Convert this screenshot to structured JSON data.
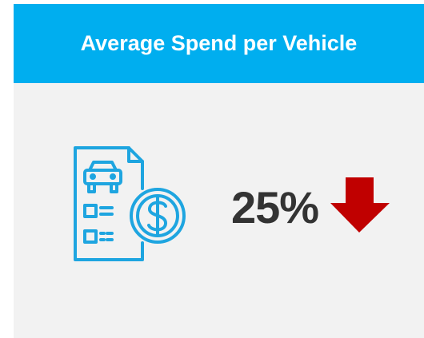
{
  "card": {
    "title": "Average Spend per Vehicle",
    "value": "25%"
  }
}
